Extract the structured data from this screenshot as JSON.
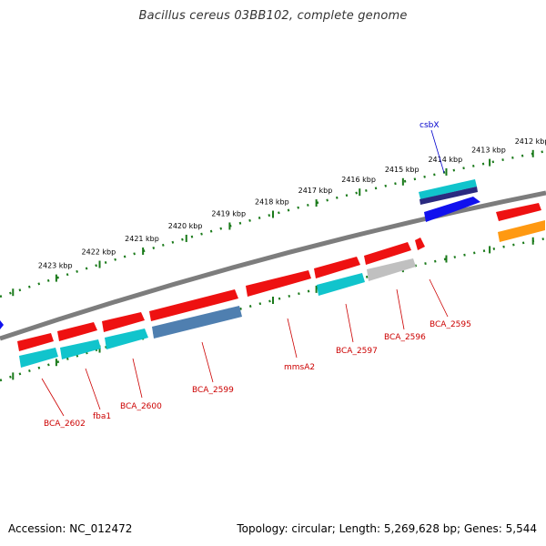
{
  "title": "Bacillus cereus 03BB102, complete genome",
  "footer": {
    "accession": "Accession: NC_012472",
    "summary": "Topology: circular; Length: 5,269,628 bp; Genes: 5,544"
  },
  "colors": {
    "backbone": "#808080",
    "ticks": "#1a7a1a",
    "label_red": "#cc0000",
    "label_blue": "#0000cc",
    "cds": "#ee1111",
    "gene": "#11c4cc",
    "gray": "#c0c0c0",
    "steel": "#4f7fb0",
    "blue": "#1111ee",
    "orange": "#ff9911",
    "navy": "#2a2a80"
  },
  "map": {
    "tick_labels": [
      {
        "label": "2412 kbp",
        "kbp": 2412
      },
      {
        "label": "2413 kbp",
        "kbp": 2413
      },
      {
        "label": "2414 kbp",
        "kbp": 2414
      },
      {
        "label": "2415 kbp",
        "kbp": 2415
      },
      {
        "label": "2416 kbp",
        "kbp": 2416
      },
      {
        "label": "2417 kbp",
        "kbp": 2417
      },
      {
        "label": "2418 kbp",
        "kbp": 2418
      },
      {
        "label": "2419 kbp",
        "kbp": 2419
      },
      {
        "label": "2420 kbp",
        "kbp": 2420
      },
      {
        "label": "2421 kbp",
        "kbp": 2421
      },
      {
        "label": "2422 kbp",
        "kbp": 2422
      },
      {
        "label": "2423 kbp",
        "kbp": 2423
      }
    ],
    "gene_labels": [
      {
        "text": "csbX",
        "color": "blue"
      },
      {
        "text": "BCA_2595",
        "color": "red"
      },
      {
        "text": "BCA_2596",
        "color": "red"
      },
      {
        "text": "BCA_2597",
        "color": "red"
      },
      {
        "text": "mmsA2",
        "color": "red"
      },
      {
        "text": "BCA_2599",
        "color": "red"
      },
      {
        "text": "BCA_2600",
        "color": "red"
      },
      {
        "text": "fba1",
        "color": "red"
      },
      {
        "text": "BCA_2602",
        "color": "red"
      }
    ]
  }
}
